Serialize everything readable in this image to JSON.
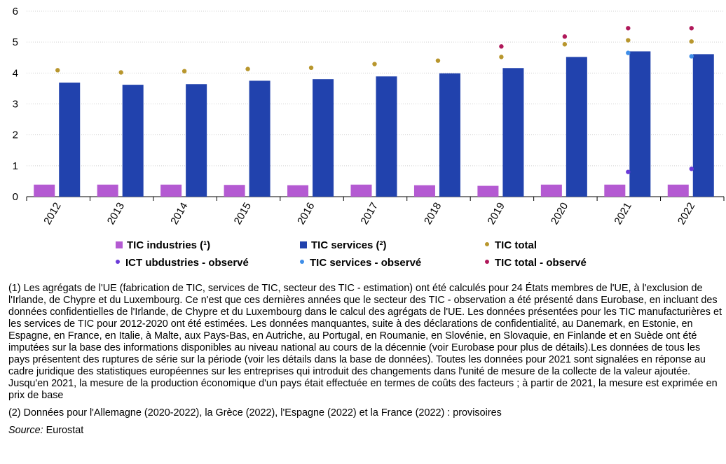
{
  "chart_data": {
    "type": "bar",
    "categories": [
      "2012",
      "2013",
      "2014",
      "2015",
      "2016",
      "2017",
      "2018",
      "2019",
      "2020",
      "2021",
      "2022"
    ],
    "ylim": [
      0,
      6
    ],
    "yticks": [
      0,
      1,
      2,
      3,
      4,
      5,
      6
    ],
    "grid": true,
    "series": [
      {
        "name": "TIC industries (¹)",
        "kind": "bar",
        "color": "#b45ad2",
        "values": [
          0.39,
          0.39,
          0.39,
          0.38,
          0.37,
          0.39,
          0.37,
          0.35,
          0.39,
          0.39,
          0.39
        ]
      },
      {
        "name": "TIC services (²)",
        "kind": "bar",
        "color": "#2142ad",
        "values": [
          3.69,
          3.62,
          3.64,
          3.75,
          3.8,
          3.89,
          3.99,
          4.16,
          4.52,
          4.7,
          4.61
        ]
      },
      {
        "name": "TIC total",
        "kind": "dot",
        "color": "#b8962d",
        "values": [
          4.09,
          4.02,
          4.06,
          4.13,
          4.17,
          4.29,
          4.4,
          4.52,
          4.93,
          5.06,
          5.02
        ]
      },
      {
        "name": "ICT ubdustries - observé",
        "kind": "dot",
        "color": "#6a3bd8",
        "values": [
          null,
          null,
          null,
          null,
          null,
          null,
          null,
          null,
          null,
          0.8,
          0.9
        ]
      },
      {
        "name": "TIC services - observé",
        "kind": "dot",
        "color": "#3f8ee8",
        "values": [
          null,
          null,
          null,
          null,
          null,
          null,
          null,
          null,
          null,
          4.65,
          4.54
        ]
      },
      {
        "name": "TIC total - observé",
        "kind": "dot",
        "color": "#b0185a",
        "values": [
          null,
          null,
          null,
          null,
          null,
          null,
          null,
          4.86,
          5.18,
          5.45,
          5.45
        ]
      }
    ]
  },
  "legend": {
    "items": [
      "TIC industries (¹)",
      "TIC services (²)",
      "TIC total",
      "ICT ubdustries - observé",
      "TIC services - observé",
      "TIC total - observé"
    ]
  },
  "notes": {
    "note1": "(1) Les agrégats de l'UE (fabrication de TIC, services de TIC, secteur des TIC - estimation) ont été calculés pour 24 États membres de l'UE, à l'exclusion de l'Irlande, de Chypre et du Luxembourg. Ce n'est que ces dernières années que le secteur des TIC - observation a été présenté dans Eurobase, en incluant des données confidentielles de l'Irlande, de Chypre et du Luxembourg dans le calcul des agrégats de l'UE.  Les données présentées pour les TIC manufacturières et les services de TIC pour 2012-2020 ont été estimées. Les données manquantes, suite à des déclarations de confidentialité, au Danemark, en Estonie, en Espagne, en France, en Italie, à Malte, aux Pays-Bas, en Autriche, au Portugal, en Roumanie, en Slovénie, en Slovaquie, en Finlande et en Suède ont été imputées sur la base des informations disponibles au niveau national au cours de la décennie (voir Eurobase pour plus de détails).Les données de tous les pays présentent des ruptures de série sur la période (voir les détails dans la base de données). Toutes les données pour 2021 sont signalées en réponse au cadre juridique des statistiques européennes sur les entreprises qui introduit des changements dans l'unité de mesure de la collecte de la valeur ajoutée. Jusqu'en 2021, la mesure de la production économique d'un pays était effectuée en termes de coûts des facteurs ; à partir de 2021, la mesure est exprimée en prix de base",
    "note2": "(2) Données pour l'Allemagne (2020-2022), la Grèce (2022), l'Espagne (2022) et la France (2022) : provisoires",
    "source_label": "Source:",
    "source_value": " Eurostat"
  }
}
